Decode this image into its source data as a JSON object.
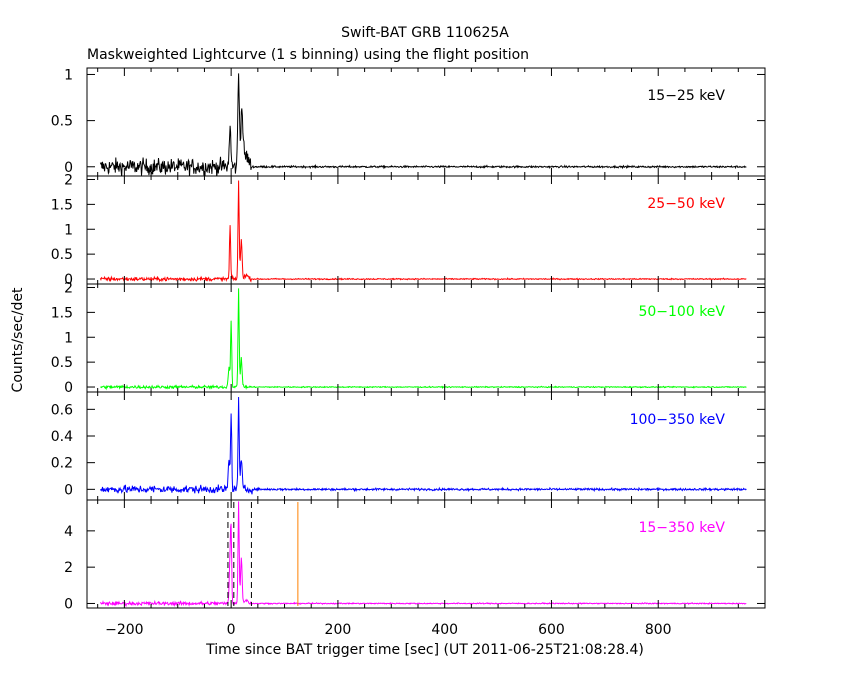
{
  "figure": {
    "title": "Swift-BAT GRB 110625A",
    "subtitle": "Maskweighted Lightcurve (1 s binning) using the flight position",
    "xlabel": "Time since BAT trigger time [sec] (UT 2011-06-25T21:08:28.4)",
    "ylabel": "Counts/sec/det"
  },
  "chart_data": {
    "type": "line",
    "title": "Swift-BAT GRB 110625A",
    "subtitle": "Maskweighted Lightcurve (1 s binning) using the flight position",
    "xlabel": "Time since BAT trigger time [sec] (UT 2011-06-25T21:08:28.4)",
    "ylabel": "Counts/sec/det",
    "xlim": [
      -270,
      1000
    ],
    "x_ticks": [
      -200,
      0,
      200,
      400,
      600,
      800
    ],
    "x_tick_labels": [
      "−200",
      "0",
      "200",
      "400",
      "600",
      "800"
    ],
    "binning_sec": 1,
    "data_range_x": [
      -245,
      965
    ],
    "grid": false,
    "panels": [
      {
        "name": "15-25 keV",
        "label": "15−25 keV",
        "color": "#000000",
        "ylim": [
          -0.1,
          1.07
        ],
        "yticks": [
          0,
          0.5,
          1
        ],
        "ytick_labels": [
          "0",
          "0.5",
          "1"
        ],
        "preburst_noise": 0.09,
        "postburst_noise": 0.01,
        "peaks": [
          {
            "t": -2,
            "amp": 0.45,
            "w": 2
          },
          {
            "t": 14,
            "amp": 1.0,
            "w": 2
          },
          {
            "t": 20,
            "amp": 0.6,
            "w": 3
          },
          {
            "t": 28,
            "amp": 0.12,
            "w": 6
          }
        ]
      },
      {
        "name": "25-50 keV",
        "label": "25−50 keV",
        "color": "#ff0000",
        "ylim": [
          -0.1,
          2.07
        ],
        "yticks": [
          0,
          0.5,
          1,
          1.5,
          2
        ],
        "ytick_labels": [
          "0",
          "0.5",
          "1",
          "1.5",
          "2"
        ],
        "preburst_noise": 0.04,
        "postburst_noise": 0.012,
        "peaks": [
          {
            "t": -2,
            "amp": 1.08,
            "w": 1.5
          },
          {
            "t": 14,
            "amp": 2.0,
            "w": 1.5
          },
          {
            "t": 19,
            "amp": 0.8,
            "w": 2
          },
          {
            "t": 28,
            "amp": 0.08,
            "w": 5
          }
        ]
      },
      {
        "name": "50-100 keV",
        "label": "50−100 keV",
        "color": "#00ff00",
        "ylim": [
          -0.1,
          2.07
        ],
        "yticks": [
          0,
          0.5,
          1,
          1.5,
          2
        ],
        "ytick_labels": [
          "0",
          "0.5",
          "1",
          "1.5",
          "2"
        ],
        "preburst_noise": 0.03,
        "postburst_noise": 0.01,
        "peaks": [
          {
            "t": -4,
            "amp": 0.4,
            "w": 2
          },
          {
            "t": 0,
            "amp": 1.35,
            "w": 1.5
          },
          {
            "t": 14,
            "amp": 2.0,
            "w": 1.5
          },
          {
            "t": 19,
            "amp": 0.6,
            "w": 2
          }
        ]
      },
      {
        "name": "100-350 keV",
        "label": "100−350 keV",
        "color": "#0000ff",
        "ylim": [
          -0.08,
          0.73
        ],
        "yticks": [
          0,
          0.2,
          0.4,
          0.6
        ],
        "ytick_labels": [
          "0",
          "0.2",
          "0.4",
          "0.6"
        ],
        "preburst_noise": 0.03,
        "postburst_noise": 0.008,
        "peaks": [
          {
            "t": -4,
            "amp": 0.22,
            "w": 2
          },
          {
            "t": 0,
            "amp": 0.58,
            "w": 1.5
          },
          {
            "t": 14,
            "amp": 0.7,
            "w": 1.5
          },
          {
            "t": 19,
            "amp": 0.24,
            "w": 2
          }
        ]
      },
      {
        "name": "15-350 keV",
        "label": "15−350 keV",
        "color": "#ff00ff",
        "ylim": [
          -0.25,
          5.7
        ],
        "yticks": [
          0,
          2,
          4
        ],
        "ytick_labels": [
          "0",
          "2",
          "4"
        ],
        "preburst_noise": 0.1,
        "postburst_noise": 0.03,
        "peaks": [
          {
            "t": -2,
            "amp": 2.5,
            "w": 2
          },
          {
            "t": 0,
            "amp": 3.5,
            "w": 1.5
          },
          {
            "t": 14,
            "amp": 5.6,
            "w": 1.5
          },
          {
            "t": 19,
            "amp": 2.6,
            "w": 2
          },
          {
            "t": 28,
            "amp": 0.2,
            "w": 5
          }
        ],
        "markers": [
          {
            "name": "t90-start-line",
            "t": -6,
            "style": "dashed",
            "color": "#000000"
          },
          {
            "name": "t90-mid-line",
            "t": 5,
            "style": "dashed",
            "color": "#000000"
          },
          {
            "name": "t90-end-line",
            "t": 38,
            "style": "dashed",
            "color": "#000000"
          },
          {
            "name": "orange-marker-line",
            "t": 125,
            "style": "solid",
            "color": "#ff8000"
          }
        ]
      }
    ]
  }
}
